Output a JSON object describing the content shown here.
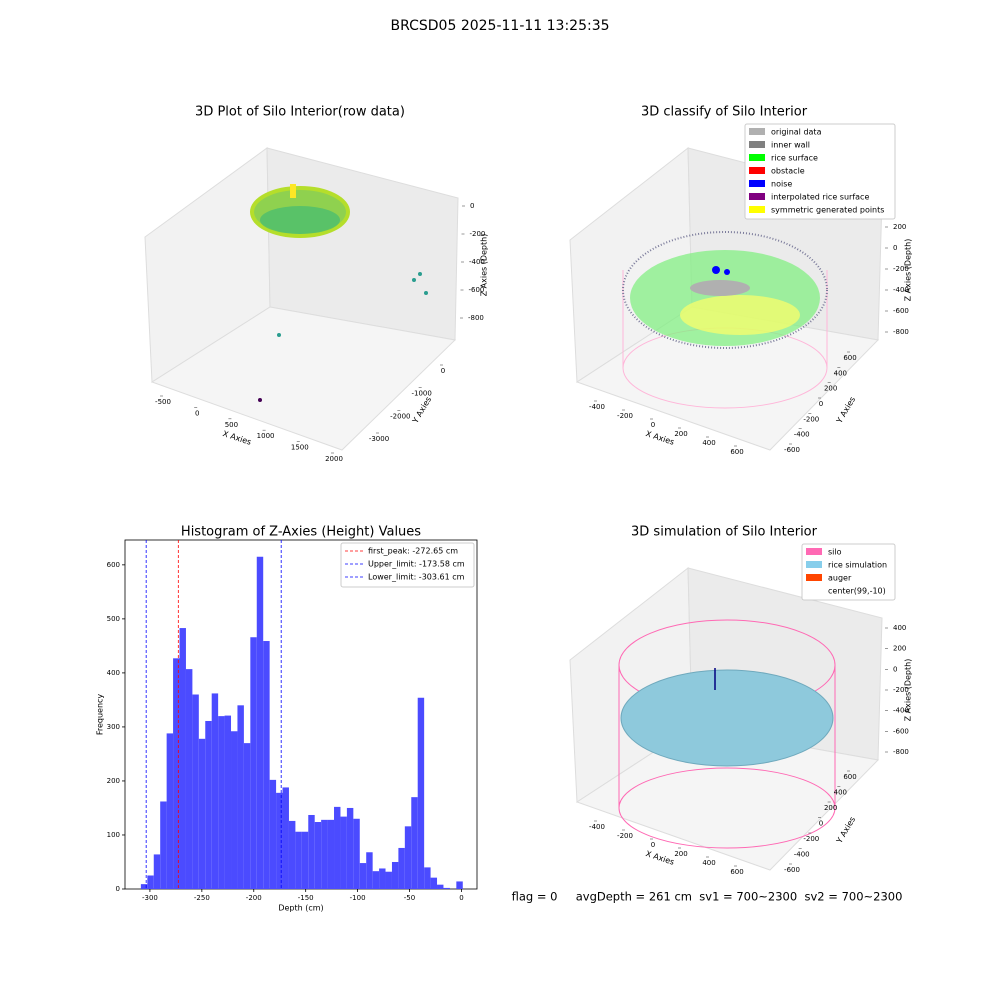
{
  "title": "BRCSD05 2025-11-11 13:25:35",
  "chart_data": [
    {
      "type": "scatter3d",
      "title": "3D Plot of Silo Interior(row data)",
      "xlabel": "X Axies",
      "ylabel": "Y Axies",
      "zlabel": "Z Axies (Depth)",
      "xticks": [
        -500,
        0,
        500,
        1000,
        1500,
        2000
      ],
      "yticks": [
        0,
        -1000,
        -2000,
        -3000
      ],
      "zticks": [
        0,
        -200,
        -400,
        -600,
        -800
      ]
    },
    {
      "type": "scatter3d",
      "title": "3D classify of Silo Interior",
      "xlabel": "X Axies",
      "ylabel": "Y Axies",
      "zlabel": "Z Axies (Depth)",
      "xticks": [
        -400,
        -200,
        0,
        200,
        400,
        600
      ],
      "yticks": [
        600,
        400,
        200,
        0,
        -200,
        -400,
        -600
      ],
      "zticks": [
        200,
        0,
        -200,
        -400,
        -600,
        -800
      ],
      "series": [
        {
          "name": "original data",
          "color": "#b0b0b0"
        },
        {
          "name": "inner wall",
          "color": "#808080"
        },
        {
          "name": "rice surface",
          "color": "#00ff00"
        },
        {
          "name": "obstacle",
          "color": "#ff0000"
        },
        {
          "name": "noise",
          "color": "#0000ff"
        },
        {
          "name": "interpolated rice surface",
          "color": "#800080"
        },
        {
          "name": "symmetric generated points",
          "color": "#ffff00"
        }
      ]
    },
    {
      "type": "histogram",
      "title": "Histogram of Z-Axies (Height) Values",
      "xlabel": "Depth (cm)",
      "ylabel": "Frequency",
      "color": "#4b4bff",
      "bins": [
        -308.7,
        -302.5,
        -296.3,
        -290.1,
        -283.9,
        -277.7,
        -271.5,
        -265.3,
        -259.1,
        -252.9,
        -246.7,
        -240.5,
        -234.3,
        -228.1,
        -221.9,
        -215.7,
        -209.5,
        -203.3,
        -197.1,
        -190.9,
        -184.7,
        -178.5,
        -172.3,
        -166.1,
        -159.9,
        -153.7,
        -147.5,
        -141.3,
        -135.1,
        -128.9,
        -122.7,
        -116.5,
        -110.3,
        -104.1,
        -97.9,
        -91.7,
        -85.5,
        -79.3,
        -73.1,
        -66.9,
        -60.7,
        -54.5,
        -48.3,
        -42.1,
        -35.9,
        -29.7,
        -23.5,
        -17.3,
        -11.1,
        -4.9,
        1.3
      ],
      "values": [
        9,
        25,
        64,
        162,
        288,
        427,
        483,
        407,
        360,
        278,
        311,
        362,
        320,
        321,
        292,
        340,
        270,
        466,
        615,
        459,
        202,
        178,
        188,
        126,
        106,
        106,
        137,
        124,
        128,
        128,
        152,
        134,
        150,
        130,
        48,
        68,
        33,
        38,
        32,
        50,
        76,
        116,
        170,
        354,
        40,
        21,
        8,
        2,
        0,
        14
      ],
      "xlim": [
        -324,
        15
      ],
      "ylim": [
        0,
        646
      ],
      "xticks": [
        -300,
        -250,
        -200,
        -150,
        -100,
        -50,
        0
      ],
      "yticks": [
        0,
        100,
        200,
        300,
        400,
        500,
        600
      ],
      "lines": [
        {
          "name": "first_peak: -272.65 cm",
          "value": -272.65,
          "color": "#ff0000"
        },
        {
          "name": "Upper_limit: -173.58 cm",
          "value": -173.58,
          "color": "#0000ff"
        },
        {
          "name": "Lower_limit: -303.61 cm",
          "value": -303.61,
          "color": "#0000ff"
        }
      ]
    },
    {
      "type": "surface3d",
      "title": "3D simulation of Silo Interior",
      "xlabel": "X Axies",
      "ylabel": "Y Axies",
      "zlabel": "Z Axies (Depth)",
      "xticks": [
        -400,
        -200,
        0,
        200,
        400,
        600
      ],
      "yticks": [
        600,
        400,
        200,
        0,
        -200,
        -400,
        -600
      ],
      "zticks": [
        400,
        200,
        0,
        -200,
        -400,
        -600,
        -800
      ],
      "series": [
        {
          "name": "silo",
          "color": "#ff69b4"
        },
        {
          "name": "rice simulation",
          "color": "#87ceeb"
        },
        {
          "name": "auger",
          "color": "#ff4500"
        },
        {
          "name": "center(99,-10)",
          "color": "#ffffff"
        }
      ]
    }
  ],
  "footer": "flag = 0     avgDepth = 261 cm  sv1 = 700~2300  sv2 = 700~2300"
}
